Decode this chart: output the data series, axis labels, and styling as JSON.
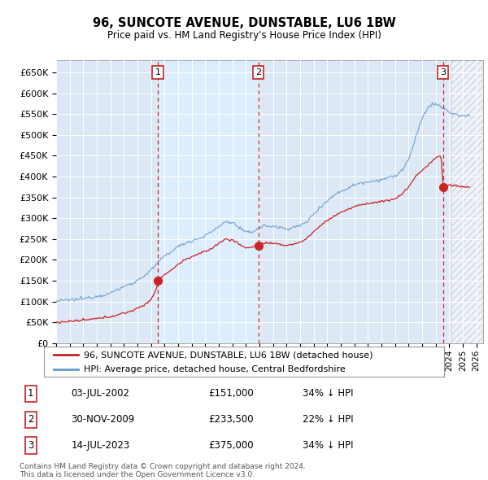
{
  "title": "96, SUNCOTE AVENUE, DUNSTABLE, LU6 1BW",
  "subtitle": "Price paid vs. HM Land Registry's House Price Index (HPI)",
  "ylabel_ticks": [
    "£0",
    "£50K",
    "£100K",
    "£150K",
    "£200K",
    "£250K",
    "£300K",
    "£350K",
    "£400K",
    "£450K",
    "£500K",
    "£550K",
    "£600K",
    "£650K"
  ],
  "ytick_values": [
    0,
    50000,
    100000,
    150000,
    200000,
    250000,
    300000,
    350000,
    400000,
    450000,
    500000,
    550000,
    600000,
    650000
  ],
  "ylim": [
    0,
    680000
  ],
  "xlim_start": 1995.0,
  "xlim_end": 2026.5,
  "sale_dates": [
    2002.5,
    2009.917,
    2023.54
  ],
  "sale_prices": [
    151000,
    233500,
    375000
  ],
  "sale_labels": [
    "1",
    "2",
    "3"
  ],
  "sale_info": [
    {
      "num": "1",
      "date": "03-JUL-2002",
      "price": "£151,000",
      "pct": "34% ↓ HPI"
    },
    {
      "num": "2",
      "date": "30-NOV-2009",
      "price": "£233,500",
      "pct": "22% ↓ HPI"
    },
    {
      "num": "3",
      "date": "14-JUL-2023",
      "price": "£375,000",
      "pct": "34% ↓ HPI"
    }
  ],
  "legend_entries": [
    {
      "label": "96, SUNCOTE AVENUE, DUNSTABLE, LU6 1BW (detached house)",
      "color": "#cc2222"
    },
    {
      "label": "HPI: Average price, detached house, Central Bedfordshire",
      "color": "#6699cc"
    }
  ],
  "footer": "Contains HM Land Registry data © Crown copyright and database right 2024.\nThis data is licensed under the Open Government Licence v3.0.",
  "background_color": "#ffffff",
  "plot_bg_color": "#dce8f5",
  "shade_between_color": "#ccddf0",
  "grid_color": "#ffffff",
  "hatch_color": "#d0d8e0"
}
